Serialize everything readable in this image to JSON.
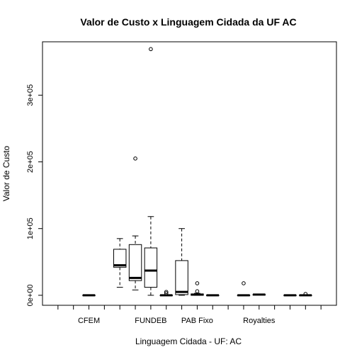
{
  "chart_data": {
    "type": "boxplot",
    "title": "Valor de Custo x Linguagem Cidada da UF AC",
    "xlabel": "Linguagem Cidada - UF: AC",
    "ylabel": "Valor de Custo",
    "ylim": [
      -15000,
      380000
    ],
    "y_ticks": [
      {
        "value": 0,
        "label": "0e+00"
      },
      {
        "value": 100000,
        "label": "1e+05"
      },
      {
        "value": 200000,
        "label": "2e+05"
      },
      {
        "value": 300000,
        "label": "3e+05"
      }
    ],
    "x_tick_labels": [
      {
        "slot": 3,
        "label": "CFEM"
      },
      {
        "slot": 7,
        "label": "FUNDEB"
      },
      {
        "slot": 10,
        "label": "PAB Fixo"
      },
      {
        "slot": 14,
        "label": "Royalties"
      }
    ],
    "slot_count": 18,
    "boxes": [
      {
        "slot": 3,
        "min": 0,
        "q1": 0,
        "median": 0,
        "q3": 0,
        "max": 0,
        "outliers": []
      },
      {
        "slot": 5,
        "min": 12000,
        "q1": 42000,
        "median": 45000,
        "q3": 69000,
        "max": 85000,
        "outliers": []
      },
      {
        "slot": 6,
        "min": 8000,
        "q1": 22000,
        "median": 26000,
        "q3": 76000,
        "max": 89000,
        "outliers": [
          205000
        ]
      },
      {
        "slot": 7,
        "min": 0,
        "q1": 12000,
        "median": 37000,
        "q3": 71000,
        "max": 118000,
        "outliers": [
          369000
        ]
      },
      {
        "slot": 8,
        "min": 0,
        "q1": 0,
        "median": 0,
        "q3": 0,
        "max": 0,
        "outliers": [
          5000,
          3000
        ]
      },
      {
        "slot": 9,
        "min": 0,
        "q1": 1000,
        "median": 5000,
        "q3": 52000,
        "max": 100000,
        "outliers": []
      },
      {
        "slot": 10,
        "min": 0,
        "q1": 0,
        "median": 1000,
        "q3": 2000,
        "max": 3000,
        "outliers": [
          18000,
          6000
        ]
      },
      {
        "slot": 11,
        "min": 0,
        "q1": 0,
        "median": 0,
        "q3": 0,
        "max": 0,
        "outliers": []
      },
      {
        "slot": 13,
        "min": 0,
        "q1": 0,
        "median": 0,
        "q3": 0,
        "max": 0,
        "outliers": [
          18000
        ]
      },
      {
        "slot": 14,
        "min": 1000,
        "q1": 1000,
        "median": 1000,
        "q3": 1000,
        "max": 1000,
        "outliers": []
      },
      {
        "slot": 16,
        "min": 0,
        "q1": 0,
        "median": 0,
        "q3": 0,
        "max": 0,
        "outliers": []
      },
      {
        "slot": 17,
        "min": 0,
        "q1": 0,
        "median": 0,
        "q3": 0,
        "max": 0,
        "outliers": [
          2000
        ]
      }
    ]
  }
}
